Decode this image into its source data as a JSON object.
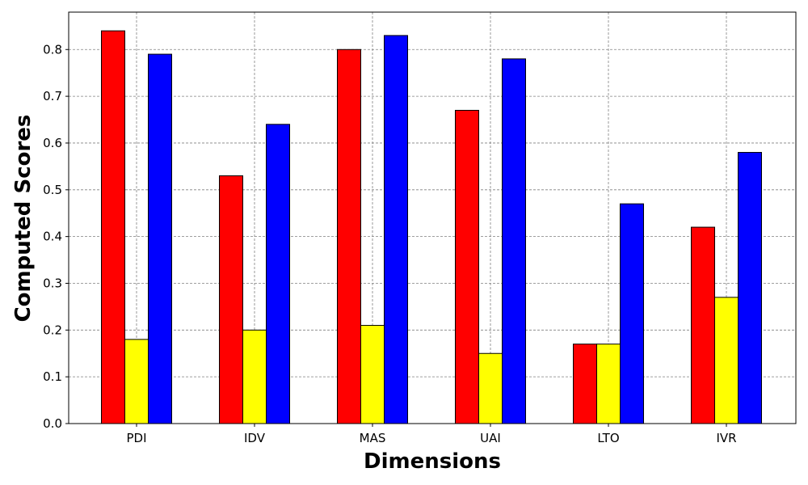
{
  "chart_data": {
    "type": "bar",
    "title": "",
    "xlabel": "Dimensions",
    "ylabel": "Computed Scores",
    "categories": [
      "PDI",
      "IDV",
      "MAS",
      "UAI",
      "LTO",
      "IVR"
    ],
    "series": [
      {
        "color": "#ff0000",
        "values": [
          0.84,
          0.53,
          0.8,
          0.67,
          0.17,
          0.42
        ]
      },
      {
        "color": "#ffff00",
        "values": [
          0.18,
          0.2,
          0.21,
          0.15,
          0.17,
          0.27
        ]
      },
      {
        "color": "#0000ff",
        "values": [
          0.79,
          0.64,
          0.83,
          0.78,
          0.47,
          0.58
        ]
      }
    ],
    "ylim": [
      0,
      0.88
    ],
    "yticks": [
      "0.0",
      "0.1",
      "0.2",
      "0.3",
      "0.4",
      "0.5",
      "0.6",
      "0.7",
      "0.8"
    ],
    "grid": true,
    "legend": "none"
  }
}
